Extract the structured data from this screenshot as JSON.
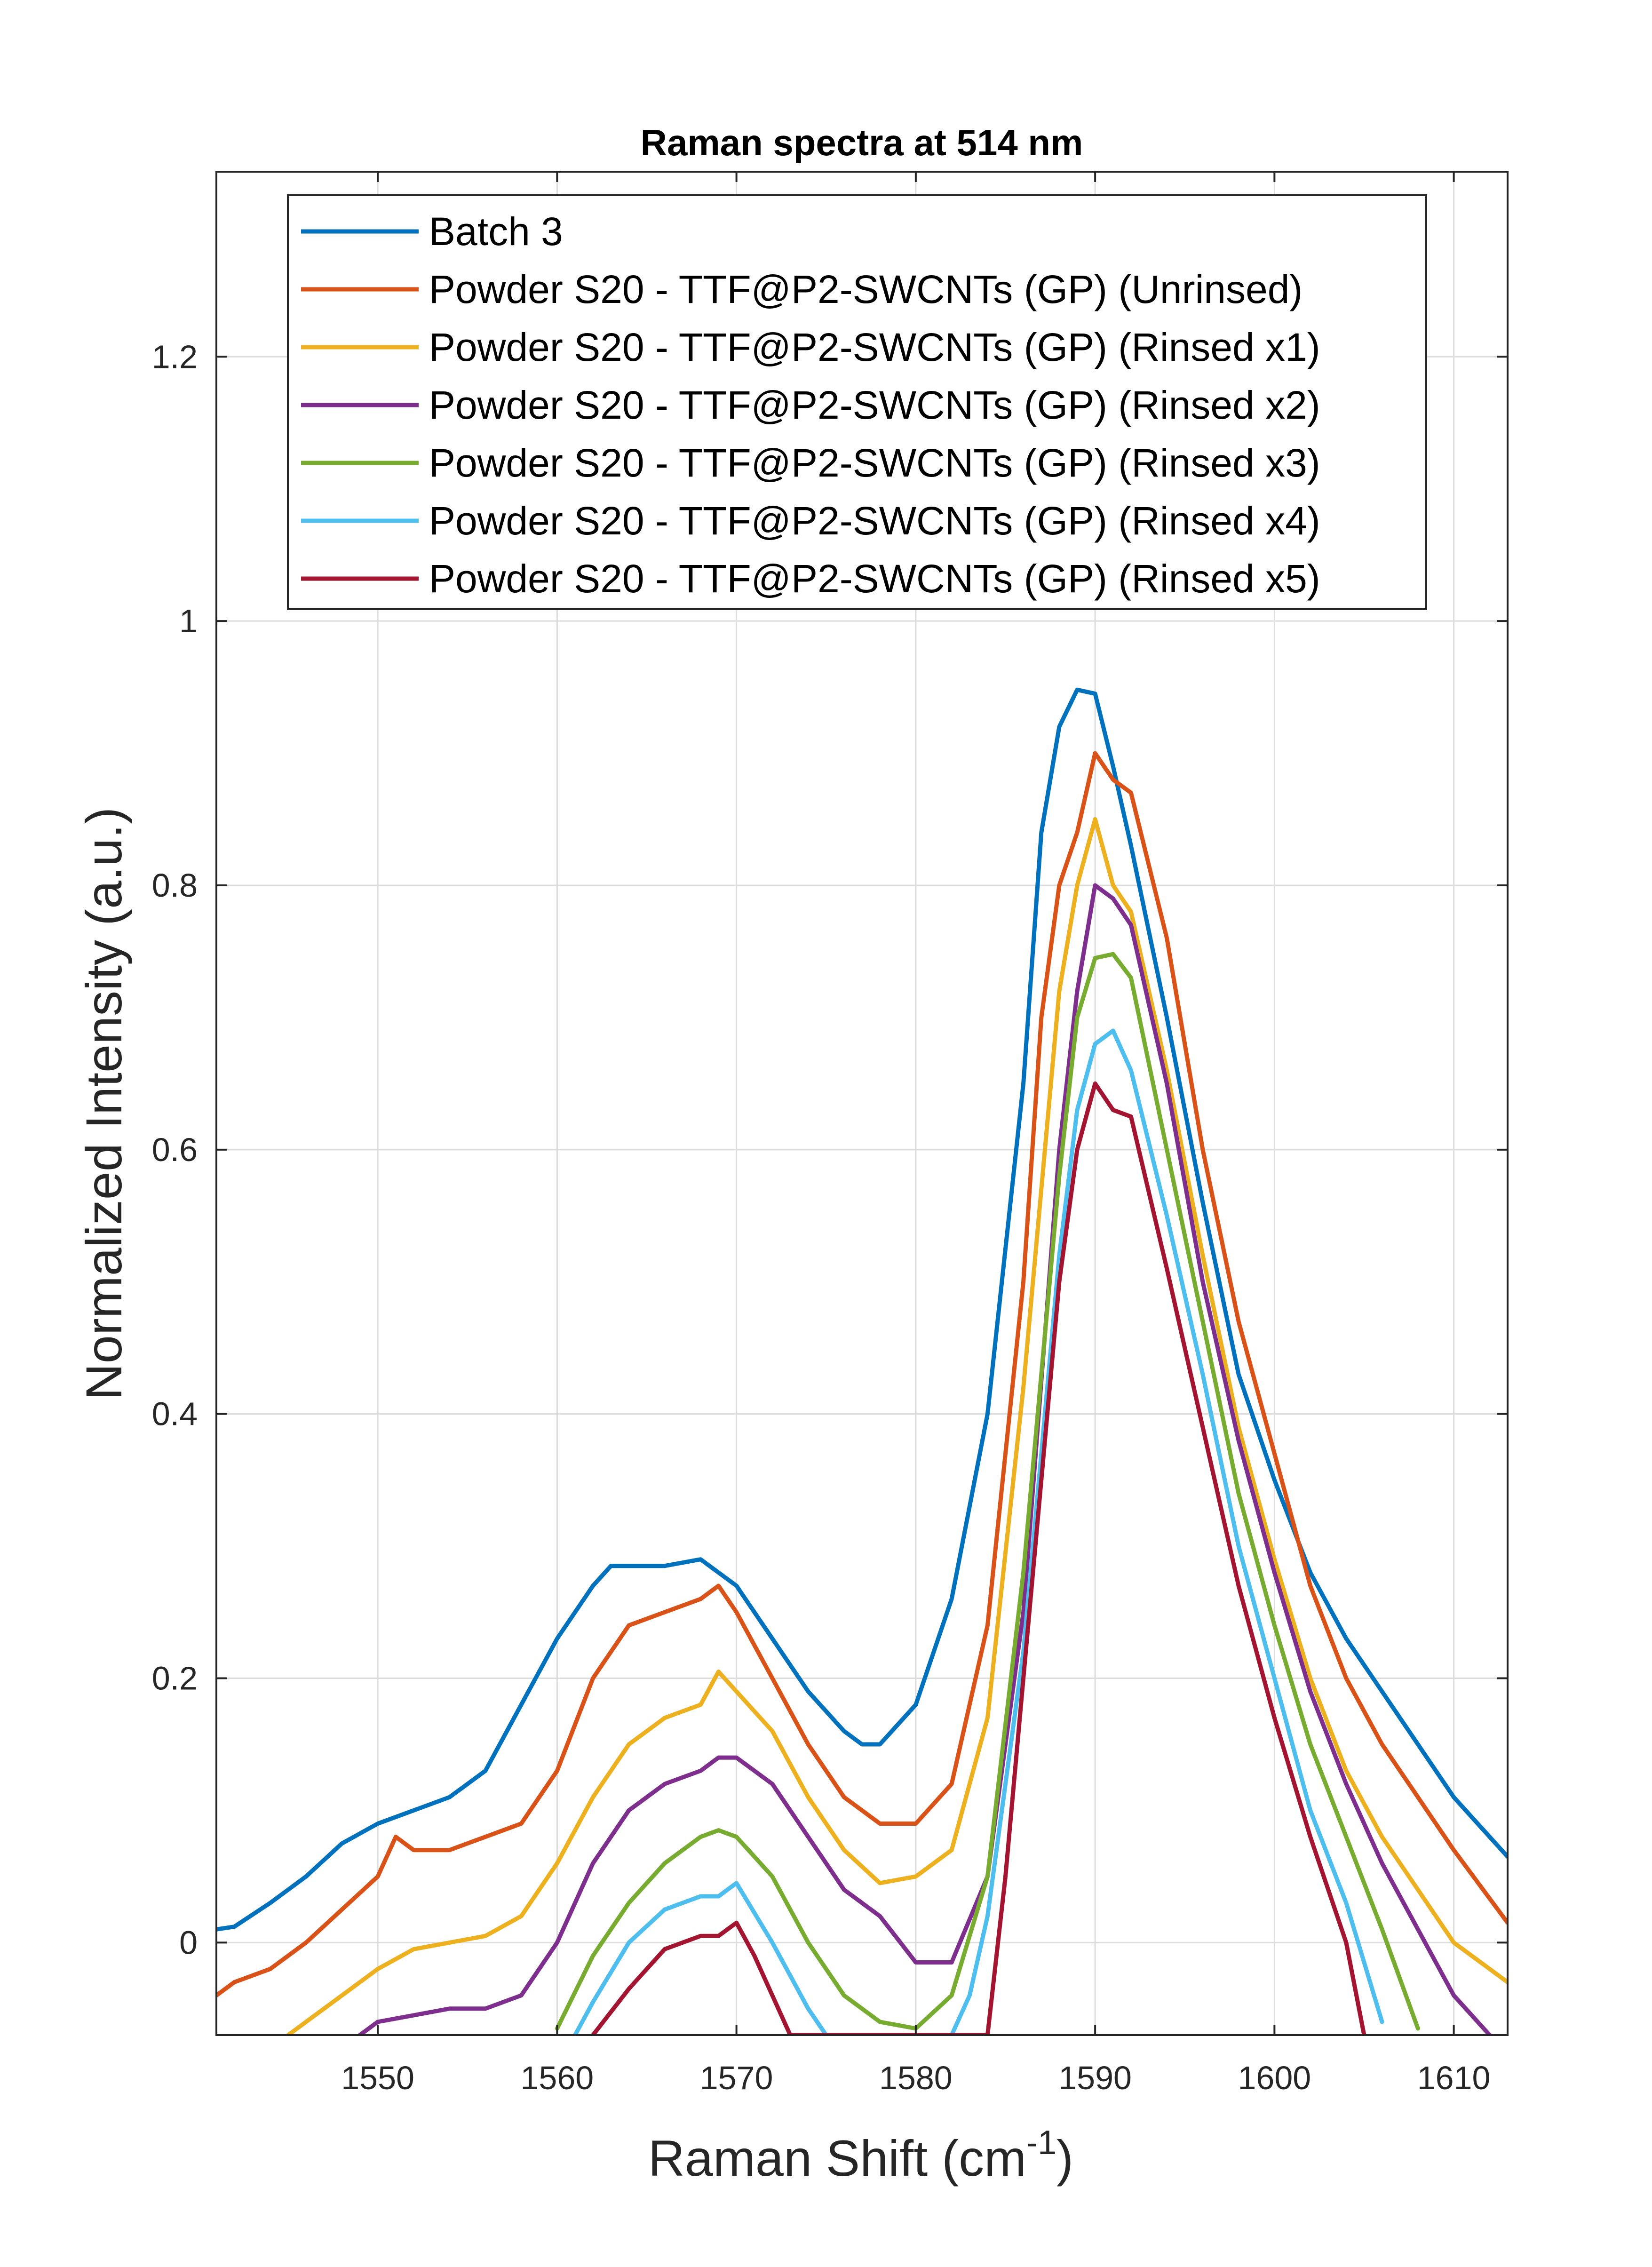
{
  "chart_data": {
    "type": "line",
    "title": "Raman spectra at 514 nm",
    "xlabel": "Raman Shift (cm",
    "xlabel_superscript": "-1",
    "xlabel_suffix": ")",
    "ylabel": "Normalized Intensity (a.u.)",
    "xlim": [
      1541,
      1613
    ],
    "ylim": [
      -0.07,
      1.34
    ],
    "xticks": [
      1550,
      1560,
      1570,
      1580,
      1590,
      1600,
      1610
    ],
    "yticks": [
      0,
      0.2,
      0.4,
      0.6,
      0.8,
      1,
      1.2
    ],
    "ytick_labels": [
      "0",
      "0.2",
      "0.4",
      "0.6",
      "0.8",
      "1",
      "1.2"
    ],
    "grid": true,
    "legend_position": "top",
    "series": [
      {
        "name": "Batch 3",
        "color": "#0072BD",
        "x": [
          1541,
          1542,
          1544,
          1546,
          1548,
          1550,
          1552,
          1554,
          1556,
          1558,
          1560,
          1562,
          1563,
          1564,
          1566,
          1568,
          1570,
          1572,
          1574,
          1576,
          1577,
          1578,
          1580,
          1582,
          1584,
          1586,
          1587,
          1588,
          1589,
          1590,
          1591,
          1592,
          1594,
          1596,
          1598,
          1600,
          1602,
          1604,
          1606,
          1608,
          1610,
          1613
        ],
        "y": [
          0.01,
          0.012,
          0.03,
          0.05,
          0.075,
          0.09,
          0.1,
          0.11,
          0.13,
          0.18,
          0.23,
          0.27,
          0.285,
          0.285,
          0.285,
          0.29,
          0.27,
          0.23,
          0.19,
          0.16,
          0.15,
          0.15,
          0.18,
          0.26,
          0.4,
          0.65,
          0.84,
          0.92,
          0.948,
          0.945,
          0.89,
          0.83,
          0.7,
          0.56,
          0.43,
          0.35,
          0.28,
          0.23,
          0.19,
          0.15,
          0.11,
          0.065
        ]
      },
      {
        "name": "Powder S20 - TTF@P2-SWCNTs (GP) (Unrinsed)",
        "color": "#D95319",
        "x": [
          1541,
          1542,
          1544,
          1546,
          1548,
          1550,
          1551,
          1552,
          1554,
          1556,
          1558,
          1560,
          1562,
          1564,
          1566,
          1568,
          1569,
          1570,
          1572,
          1574,
          1576,
          1578,
          1580,
          1582,
          1584,
          1586,
          1587,
          1588,
          1589,
          1590,
          1591,
          1592,
          1594,
          1596,
          1598,
          1600,
          1602,
          1604,
          1606,
          1608,
          1610,
          1613
        ],
        "y": [
          -0.04,
          -0.03,
          -0.02,
          0.0,
          0.025,
          0.05,
          0.08,
          0.07,
          0.07,
          0.08,
          0.09,
          0.13,
          0.2,
          0.24,
          0.25,
          0.26,
          0.27,
          0.25,
          0.2,
          0.15,
          0.11,
          0.09,
          0.09,
          0.12,
          0.24,
          0.5,
          0.7,
          0.8,
          0.84,
          0.9,
          0.88,
          0.87,
          0.76,
          0.6,
          0.47,
          0.37,
          0.27,
          0.2,
          0.15,
          0.11,
          0.07,
          0.015
        ]
      },
      {
        "name": "Powder S20 - TTF@P2-SWCNTs (GP) (Rinsed x1)",
        "color": "#EDB120",
        "x": [
          1545,
          1546,
          1548,
          1550,
          1552,
          1554,
          1556,
          1558,
          1560,
          1562,
          1564,
          1566,
          1568,
          1569,
          1570,
          1572,
          1574,
          1576,
          1578,
          1580,
          1582,
          1584,
          1586,
          1588,
          1589,
          1590,
          1591,
          1592,
          1594,
          1596,
          1598,
          1600,
          1602,
          1604,
          1606,
          1608,
          1610,
          1613
        ],
        "y": [
          -0.07,
          -0.06,
          -0.04,
          -0.02,
          -0.005,
          0.0,
          0.005,
          0.02,
          0.06,
          0.11,
          0.15,
          0.17,
          0.18,
          0.205,
          0.19,
          0.16,
          0.11,
          0.07,
          0.045,
          0.05,
          0.07,
          0.17,
          0.42,
          0.72,
          0.8,
          0.85,
          0.8,
          0.78,
          0.66,
          0.52,
          0.39,
          0.29,
          0.2,
          0.13,
          0.08,
          0.04,
          0.0,
          -0.03
        ]
      },
      {
        "name": "Powder S20 - TTF@P2-SWCNTs (GP) (Rinsed x2)",
        "color": "#7E2F8E",
        "x": [
          1549,
          1550,
          1552,
          1554,
          1556,
          1558,
          1560,
          1562,
          1564,
          1566,
          1568,
          1569,
          1570,
          1572,
          1574,
          1576,
          1578,
          1580,
          1582,
          1584,
          1586,
          1588,
          1589,
          1590,
          1591,
          1592,
          1594,
          1596,
          1598,
          1600,
          1602,
          1604,
          1606,
          1608,
          1610,
          1612
        ],
        "y": [
          -0.07,
          -0.06,
          -0.055,
          -0.05,
          -0.05,
          -0.04,
          0.0,
          0.06,
          0.1,
          0.12,
          0.13,
          0.14,
          0.14,
          0.12,
          0.08,
          0.04,
          0.02,
          -0.015,
          -0.015,
          0.05,
          0.25,
          0.6,
          0.72,
          0.8,
          0.79,
          0.77,
          0.65,
          0.5,
          0.38,
          0.28,
          0.19,
          0.12,
          0.06,
          0.01,
          -0.04,
          -0.07
        ]
      },
      {
        "name": "Powder S20 - TTF@P2-SWCNTs (GP) (Rinsed x3)",
        "color": "#77AC30",
        "x": [
          1560,
          1562,
          1564,
          1566,
          1568,
          1569,
          1570,
          1572,
          1574,
          1576,
          1578,
          1580,
          1582,
          1584,
          1586,
          1588,
          1589,
          1590,
          1591,
          1592,
          1594,
          1596,
          1598,
          1600,
          1602,
          1604,
          1606,
          1608
        ],
        "y": [
          -0.065,
          -0.01,
          0.03,
          0.06,
          0.08,
          0.085,
          0.08,
          0.05,
          0.0,
          -0.04,
          -0.06,
          -0.065,
          -0.04,
          0.05,
          0.28,
          0.58,
          0.7,
          0.745,
          0.748,
          0.73,
          0.6,
          0.47,
          0.34,
          0.24,
          0.15,
          0.08,
          0.01,
          -0.065
        ]
      },
      {
        "name": "Powder S20 - TTF@P2-SWCNTs (GP) (Rinsed x4)",
        "color": "#4DBEEE",
        "x": [
          1561,
          1562,
          1564,
          1566,
          1568,
          1569,
          1570,
          1572,
          1574,
          1575,
          1582,
          1583,
          1584,
          1586,
          1588,
          1589,
          1590,
          1591,
          1592,
          1594,
          1596,
          1598,
          1600,
          1602,
          1604,
          1606
        ],
        "y": [
          -0.07,
          -0.045,
          0.0,
          0.025,
          0.035,
          0.035,
          0.045,
          0.0,
          -0.05,
          -0.07,
          -0.07,
          -0.04,
          0.02,
          0.22,
          0.52,
          0.63,
          0.68,
          0.69,
          0.66,
          0.55,
          0.43,
          0.3,
          0.2,
          0.1,
          0.03,
          -0.06
        ]
      },
      {
        "name": "Powder S20 - TTF@P2-SWCNTs (GP) (Rinsed x5)",
        "color": "#A2142F",
        "x": [
          1562,
          1564,
          1566,
          1568,
          1569,
          1570,
          1571,
          1572,
          1573,
          1584,
          1585,
          1586,
          1588,
          1589,
          1590,
          1591,
          1592,
          1594,
          1596,
          1598,
          1600,
          1602,
          1604,
          1605
        ],
        "y": [
          -0.07,
          -0.035,
          -0.005,
          0.005,
          0.005,
          0.015,
          -0.01,
          -0.04,
          -0.07,
          -0.07,
          0.05,
          0.2,
          0.5,
          0.6,
          0.65,
          0.63,
          0.625,
          0.51,
          0.39,
          0.27,
          0.17,
          0.08,
          0.0,
          -0.07
        ]
      }
    ]
  }
}
